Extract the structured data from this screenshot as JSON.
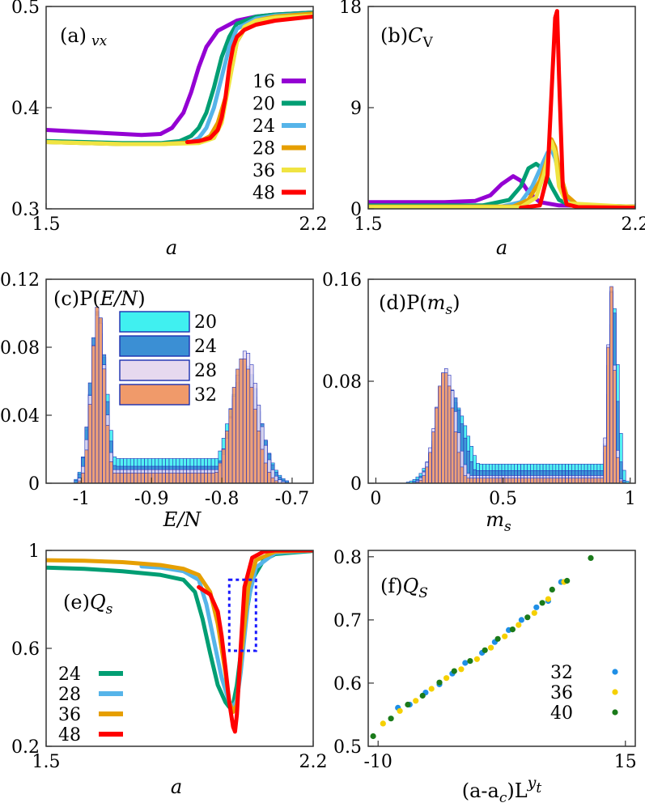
{
  "chart_data": [
    {
      "id": "a",
      "type": "line",
      "title": "(a)",
      "title_sub": "vx",
      "xlabel": "a",
      "ylabel": "",
      "xlim": [
        1.5,
        2.2
      ],
      "ylim": [
        0.3,
        0.5
      ],
      "xticks": [
        "1.5",
        "2.2"
      ],
      "yticks": [
        "0.3",
        "0.4",
        "0.5"
      ],
      "legend_position": "right",
      "series": [
        {
          "name": "16",
          "color": "#9400d3",
          "x": [
            1.5,
            1.6,
            1.7,
            1.75,
            1.8,
            1.83,
            1.86,
            1.88,
            1.9,
            1.92,
            1.95,
            2.0,
            2.05,
            2.1,
            2.2
          ],
          "y": [
            0.378,
            0.376,
            0.374,
            0.373,
            0.374,
            0.38,
            0.395,
            0.415,
            0.44,
            0.46,
            0.476,
            0.486,
            0.49,
            0.492,
            0.494
          ]
        },
        {
          "name": "20",
          "color": "#009e73",
          "x": [
            1.5,
            1.6,
            1.7,
            1.8,
            1.85,
            1.88,
            1.9,
            1.92,
            1.94,
            1.96,
            1.98,
            2.0,
            2.05,
            2.1,
            2.2
          ],
          "y": [
            0.367,
            0.366,
            0.365,
            0.365,
            0.367,
            0.372,
            0.38,
            0.395,
            0.42,
            0.45,
            0.47,
            0.483,
            0.49,
            0.492,
            0.494
          ]
        },
        {
          "name": "24",
          "color": "#56b4e9",
          "x": [
            1.5,
            1.6,
            1.7,
            1.8,
            1.88,
            1.9,
            1.92,
            1.94,
            1.96,
            1.98,
            2.0,
            2.05,
            2.1,
            2.2
          ],
          "y": [
            0.366,
            0.365,
            0.364,
            0.364,
            0.366,
            0.37,
            0.38,
            0.4,
            0.43,
            0.46,
            0.478,
            0.488,
            0.491,
            0.493
          ]
        },
        {
          "name": "28",
          "color": "#e69f00",
          "x": [
            1.5,
            1.6,
            1.7,
            1.8,
            1.9,
            1.93,
            1.95,
            1.97,
            1.99,
            2.0,
            2.02,
            2.05,
            2.1,
            2.2
          ],
          "y": [
            0.366,
            0.365,
            0.364,
            0.364,
            0.366,
            0.372,
            0.385,
            0.41,
            0.445,
            0.465,
            0.478,
            0.486,
            0.49,
            0.493
          ]
        },
        {
          "name": "36",
          "color": "#f0e442",
          "x": [
            1.5,
            1.6,
            1.7,
            1.8,
            1.9,
            1.94,
            1.96,
            1.98,
            2.0,
            2.02,
            2.05,
            2.1,
            2.2
          ],
          "y": [
            0.366,
            0.365,
            0.364,
            0.364,
            0.365,
            0.37,
            0.385,
            0.425,
            0.465,
            0.48,
            0.486,
            0.489,
            0.491
          ]
        },
        {
          "name": "48",
          "color": "#ff0000",
          "x": [
            1.87,
            1.9,
            1.93,
            1.95,
            1.96,
            1.97,
            1.98,
            1.99,
            2.0,
            2.02,
            2.05,
            2.1,
            2.2
          ],
          "y": [
            0.366,
            0.367,
            0.37,
            0.378,
            0.39,
            0.41,
            0.44,
            0.46,
            0.47,
            0.477,
            0.482,
            0.486,
            0.49
          ]
        }
      ]
    },
    {
      "id": "b",
      "type": "line",
      "title": "(b)",
      "title_main": "C",
      "title_subscript": "V",
      "xlabel": "a",
      "ylabel": "",
      "xlim": [
        1.5,
        2.2
      ],
      "ylim": [
        0,
        18
      ],
      "xticks": [
        "1.5",
        "2.2"
      ],
      "yticks": [
        "0",
        "9",
        "18"
      ],
      "series": [
        {
          "name": "16",
          "color": "#9400d3",
          "x": [
            1.5,
            1.7,
            1.78,
            1.82,
            1.85,
            1.88,
            1.9,
            1.92,
            1.95,
            2.0,
            2.2
          ],
          "y": [
            0.6,
            0.6,
            0.7,
            1.2,
            2.2,
            2.9,
            2.5,
            1.5,
            0.6,
            0.3,
            0.2
          ]
        },
        {
          "name": "20",
          "color": "#009e73",
          "x": [
            1.5,
            1.8,
            1.87,
            1.9,
            1.92,
            1.94,
            1.96,
            1.98,
            2.0,
            2.03,
            2.2
          ],
          "y": [
            0.3,
            0.3,
            0.8,
            2.0,
            3.6,
            4.0,
            3.5,
            2.0,
            0.8,
            0.3,
            0.2
          ]
        },
        {
          "name": "24",
          "color": "#56b4e9",
          "x": [
            1.5,
            1.85,
            1.9,
            1.93,
            1.95,
            1.97,
            1.98,
            1.99,
            2.0,
            2.02,
            2.05,
            2.2
          ],
          "y": [
            0.2,
            0.2,
            0.6,
            2.0,
            3.5,
            5.0,
            5.3,
            4.5,
            3.0,
            1.0,
            0.3,
            0.2
          ]
        },
        {
          "name": "28",
          "color": "#e69f00",
          "x": [
            1.5,
            1.88,
            1.92,
            1.95,
            1.97,
            1.98,
            1.99,
            2.0,
            2.02,
            2.05,
            2.2
          ],
          "y": [
            0.2,
            0.2,
            0.8,
            2.5,
            4.5,
            6.2,
            5.5,
            3.5,
            1.2,
            0.3,
            0.2
          ]
        },
        {
          "name": "36",
          "color": "#f0e442",
          "x": [
            1.5,
            1.9,
            1.94,
            1.96,
            1.97,
            1.98,
            1.99,
            2.0,
            2.02,
            2.2
          ],
          "y": [
            0.15,
            0.15,
            1.0,
            3.0,
            4.5,
            6.0,
            5.0,
            2.0,
            0.5,
            0.15
          ]
        },
        {
          "name": "48",
          "color": "#ff0000",
          "x": [
            1.9,
            1.95,
            1.97,
            1.98,
            1.99,
            1.995,
            2.0,
            2.01,
            2.02,
            2.05,
            2.2
          ],
          "y": [
            0.1,
            0.3,
            3.0,
            10.0,
            17.0,
            17.6,
            12.0,
            2.0,
            0.4,
            0.15,
            0.1
          ]
        }
      ]
    },
    {
      "id": "c",
      "type": "bar",
      "title": "(c)P(",
      "title_var": "E/N",
      "title_close": ")",
      "xlabel": "E/N",
      "ylabel": "",
      "xlim": [
        -1.05,
        -0.67
      ],
      "ylim": [
        0,
        0.12
      ],
      "xticks": [
        "-1",
        "-0.9",
        "-0.8",
        "-0.7"
      ],
      "xtick_values": [
        -1.0,
        -0.9,
        -0.8,
        -0.7
      ],
      "yticks": [
        "0",
        "0.04",
        "0.08",
        "0.12"
      ],
      "bin_width": 0.005,
      "legend_position": "top-center",
      "series": [
        {
          "name": "20",
          "color": "#40f0f0",
          "peaks": [
            [
              -0.975,
              0.012,
              0.09
            ],
            [
              -0.768,
              0.022,
              0.065
            ]
          ],
          "floor": 0.0145
        },
        {
          "name": "24",
          "color": "#3b8fd4",
          "peaks": [
            [
              -0.976,
              0.011,
              0.102
            ],
            [
              -0.766,
              0.02,
              0.07
            ]
          ],
          "floor": 0.01
        },
        {
          "name": "28",
          "color": "#e6d9ef",
          "peaks": [
            [
              -0.976,
              0.01,
              0.1
            ],
            [
              -0.766,
              0.018,
              0.078
            ]
          ],
          "floor": 0.008
        },
        {
          "name": "32",
          "color": "#f09a6a",
          "peaks": [
            [
              -0.976,
              0.009,
              0.105
            ],
            [
              -0.77,
              0.017,
              0.074
            ]
          ],
          "floor": 0.006
        }
      ]
    },
    {
      "id": "d",
      "type": "bar",
      "title": "(d)P(",
      "title_var": "m",
      "title_subscript": "s",
      "title_close": ")",
      "xlabel": "m",
      "xlabel_sub": "s",
      "ylabel": "",
      "xlim": [
        -0.03,
        1.02
      ],
      "ylim": [
        0,
        0.16
      ],
      "xticks": [
        "0",
        "0.5",
        "1"
      ],
      "xtick_values": [
        0,
        0.5,
        1.0
      ],
      "yticks": [
        "0",
        "0.08",
        "0.16"
      ],
      "bin_width": 0.0125,
      "series": [
        {
          "name": "20",
          "color": "#40f0f0",
          "peaks": [
            [
              0.3,
              0.06,
              0.065
            ],
            [
              0.935,
              0.018,
              0.14
            ]
          ],
          "floor": 0.015
        },
        {
          "name": "24",
          "color": "#3b8fd4",
          "peaks": [
            [
              0.29,
              0.05,
              0.075
            ],
            [
              0.93,
              0.016,
              0.155
            ]
          ],
          "floor": 0.01
        },
        {
          "name": "28",
          "color": "#e6d9ef",
          "peaks": [
            [
              0.275,
              0.04,
              0.09
            ],
            [
              0.925,
              0.014,
              0.15
            ]
          ],
          "floor": 0.006
        },
        {
          "name": "32",
          "color": "#f09a6a",
          "peaks": [
            [
              0.27,
              0.035,
              0.088
            ],
            [
              0.925,
              0.013,
              0.155
            ]
          ],
          "floor": 0.004
        }
      ]
    },
    {
      "id": "e",
      "type": "line",
      "title": "(e)",
      "title_main": "Q",
      "title_subscript": "s",
      "xlabel": "a",
      "ylabel": "",
      "xlim": [
        1.5,
        2.2
      ],
      "ylim": [
        0.2,
        1.0
      ],
      "xticks": [
        "1.5",
        "2.2"
      ],
      "yticks": [
        "0.2",
        "0.6",
        "1"
      ],
      "legend_position": "bottom-left",
      "inset_box": {
        "x": [
          1.98,
          2.05
        ],
        "y": [
          0.59,
          0.88
        ]
      },
      "series": [
        {
          "name": "24",
          "color": "#009e73",
          "x": [
            1.5,
            1.6,
            1.7,
            1.8,
            1.86,
            1.89,
            1.91,
            1.93,
            1.95,
            1.97,
            1.98,
            1.99,
            2.0,
            2.02,
            2.04,
            2.07,
            2.1,
            2.2
          ],
          "y": [
            0.93,
            0.925,
            0.915,
            0.9,
            0.88,
            0.83,
            0.72,
            0.58,
            0.45,
            0.38,
            0.36,
            0.37,
            0.45,
            0.7,
            0.88,
            0.96,
            0.985,
            0.998
          ]
        },
        {
          "name": "28",
          "color": "#56b4e9",
          "x": [
            1.75,
            1.8,
            1.86,
            1.9,
            1.92,
            1.94,
            1.96,
            1.98,
            1.99,
            2.0,
            2.01,
            2.03,
            2.05,
            2.1,
            2.2
          ],
          "y": [
            0.935,
            0.93,
            0.915,
            0.88,
            0.78,
            0.63,
            0.48,
            0.38,
            0.36,
            0.39,
            0.5,
            0.8,
            0.93,
            0.99,
            1.0
          ]
        },
        {
          "name": "36",
          "color": "#e69f00",
          "x": [
            1.5,
            1.6,
            1.7,
            1.8,
            1.86,
            1.9,
            1.93,
            1.95,
            1.97,
            1.98,
            1.99,
            2.0,
            2.01,
            2.03,
            2.05,
            2.1,
            2.2
          ],
          "y": [
            0.96,
            0.958,
            0.952,
            0.94,
            0.925,
            0.9,
            0.83,
            0.7,
            0.5,
            0.38,
            0.34,
            0.37,
            0.55,
            0.85,
            0.96,
            0.995,
            1.0
          ]
        },
        {
          "name": "48",
          "color": "#ff0000",
          "x": [
            1.9,
            1.93,
            1.95,
            1.96,
            1.97,
            1.98,
            1.99,
            1.995,
            2.0,
            2.01,
            2.02,
            2.04,
            2.07,
            2.1,
            2.2
          ],
          "y": [
            0.85,
            0.82,
            0.75,
            0.65,
            0.52,
            0.38,
            0.28,
            0.26,
            0.33,
            0.6,
            0.85,
            0.97,
            0.995,
            1.0,
            1.0
          ]
        }
      ]
    },
    {
      "id": "f",
      "type": "scatter",
      "title": "(f)",
      "title_main": "Q",
      "title_subscript": "S",
      "xlabel": "(a-a",
      "xlabel_c": "c",
      "xlabel_mid": ")L",
      "xlabel_sup": "y",
      "xlabel_supsub": "t",
      "ylabel": "",
      "xlim": [
        -11,
        16
      ],
      "ylim": [
        0.5,
        0.81
      ],
      "xticks": [
        "-10",
        "15"
      ],
      "xtick_values": [
        -10,
        15
      ],
      "yticks": [
        "0.5",
        "0.6",
        "0.7",
        "0.8"
      ],
      "ytick_values": [
        0.5,
        0.6,
        0.7,
        0.8
      ],
      "legend_position": "bottom-right",
      "series": [
        {
          "name": "32",
          "color": "#1f8fe6",
          "x": [
            -8,
            -6.8,
            -5.2,
            -3.8,
            -2.5,
            -1.2,
            0.5,
            1.8,
            3.2,
            4.5,
            6.0,
            7.2,
            8.5
          ],
          "y": [
            0.561,
            0.566,
            0.585,
            0.598,
            0.615,
            0.632,
            0.648,
            0.665,
            0.684,
            0.7,
            0.72,
            0.73,
            0.76
          ]
        },
        {
          "name": "36",
          "color": "#f5d000",
          "x": [
            -9.5,
            -7.8,
            -6.2,
            -4.6,
            -3.1,
            -1.6,
            0.0,
            1.4,
            2.8,
            4.2,
            5.8,
            7.2,
            8.8
          ],
          "y": [
            0.536,
            0.556,
            0.572,
            0.591,
            0.608,
            0.622,
            0.638,
            0.656,
            0.674,
            0.692,
            0.711,
            0.733,
            0.76
          ]
        },
        {
          "name": "40",
          "color": "#1a7a1a",
          "x": [
            -10.5,
            -8.7,
            -7.0,
            -5.5,
            -3.8,
            -2.3,
            -0.7,
            0.8,
            2.1,
            3.6,
            5.1,
            6.6,
            7.6,
            9.1,
            11.5
          ],
          "y": [
            0.516,
            0.544,
            0.566,
            0.58,
            0.601,
            0.619,
            0.635,
            0.652,
            0.67,
            0.685,
            0.704,
            0.727,
            0.748,
            0.762,
            0.798
          ]
        }
      ]
    }
  ]
}
